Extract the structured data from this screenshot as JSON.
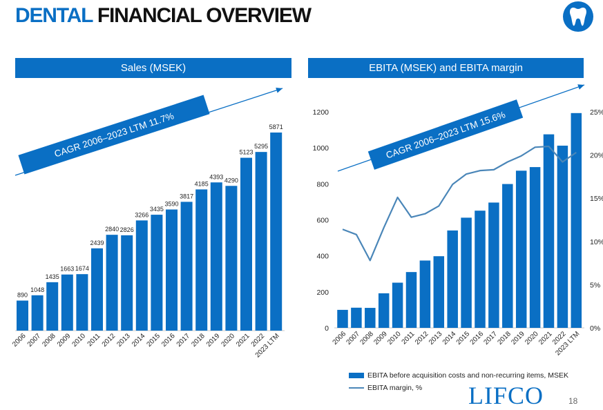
{
  "header": {
    "title_part1": "DENTAL",
    "title_part2": "FINANCIAL OVERVIEW",
    "icon": "tooth-icon"
  },
  "colors": {
    "brand_blue": "#0a6fc4",
    "margin_line": "#4a86b8"
  },
  "footer": {
    "logo": "LIFCO",
    "page_number": "18"
  },
  "chart_data": [
    {
      "type": "bar",
      "title": "Sales (MSEK)",
      "categories": [
        "2006",
        "2007",
        "2008",
        "2009",
        "2010",
        "2011",
        "2012",
        "2013",
        "2014",
        "2015",
        "2016",
        "2017",
        "2018",
        "2019",
        "2020",
        "2021",
        "2022",
        "2023 LTM"
      ],
      "values": [
        890,
        1048,
        1435,
        1663,
        1674,
        2439,
        2840,
        2826,
        3266,
        3435,
        3590,
        3817,
        4185,
        4393,
        4290,
        5123,
        5295,
        5871
      ],
      "ylim": [
        0,
        5871
      ],
      "data_labels": true,
      "annotation": "CAGR 2006–2023 LTM 11.7%",
      "grid": false
    },
    {
      "type": "bar",
      "title": "EBITA (MSEK) and EBITA margin",
      "categories": [
        "2006",
        "2007",
        "2008",
        "2009",
        "2010",
        "2011",
        "2012",
        "2013",
        "2014",
        "2015",
        "2016",
        "2017",
        "2018",
        "2019",
        "2020",
        "2021",
        "2022",
        "2023 LTM"
      ],
      "series": [
        {
          "name": "EBITA before acquisition costs and non-recurring items, MSEK",
          "type": "bar",
          "axis": "left",
          "values": [
            100,
            112,
            111,
            192,
            251,
            310,
            374,
            398,
            541,
            612,
            651,
            696,
            799,
            873,
            893,
            1075,
            1012,
            1193
          ]
        },
        {
          "name": "EBITA margin, %",
          "type": "line",
          "axis": "right",
          "values": [
            11.4,
            10.8,
            7.8,
            11.6,
            15.1,
            12.8,
            13.2,
            14.1,
            16.6,
            17.8,
            18.2,
            18.3,
            19.2,
            19.9,
            20.9,
            21.0,
            19.2,
            20.3
          ]
        }
      ],
      "yticks": [
        "0",
        "200",
        "400",
        "600",
        "800",
        "1000",
        "1200"
      ],
      "ylim": [
        0,
        1200
      ],
      "y2ticks": [
        "0%",
        "5%",
        "10%",
        "15%",
        "20%",
        "25%"
      ],
      "y2lim": [
        0,
        25
      ],
      "annotation": "CAGR 2006–2023 LTM 15.6%",
      "legend_position": "bottom",
      "grid": false
    }
  ]
}
